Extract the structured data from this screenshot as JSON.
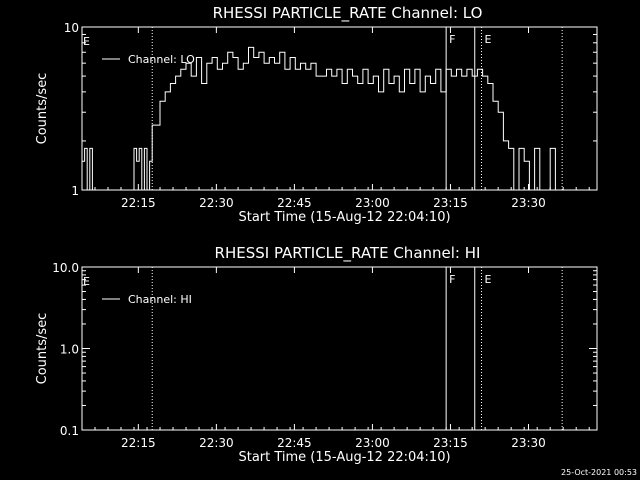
{
  "footer": {
    "timestamp": "25-Oct-2021 00:53"
  },
  "colors": {
    "background": "#000000",
    "foreground": "#ffffff"
  },
  "chart_data": [
    {
      "type": "line",
      "title": "RHESSI PARTICLE_RATE Channel: LO",
      "xlabel": "Start Time (15-Aug-12 22:04:10)",
      "ylabel": "Counts/sec",
      "yscale": "log",
      "ylim": [
        1,
        10
      ],
      "ytick_labels": [
        "1",
        "10"
      ],
      "ytick_values": [
        1,
        10
      ],
      "xlim_minutes": [
        0,
        99
      ],
      "xtick_labels": [
        "22:15",
        "22:30",
        "22:45",
        "23:00",
        "23:15",
        "23:30"
      ],
      "xtick_values_minutes": [
        10.83,
        25.83,
        40.83,
        55.83,
        70.83,
        85.83
      ],
      "legend": "top-left",
      "series": [
        {
          "name": "Channel: LO",
          "x": [
            0,
            0.5,
            1,
            1.5,
            2,
            3,
            4,
            5,
            6,
            7,
            8,
            9,
            10,
            10.5,
            11,
            11.5,
            12,
            12.5,
            13,
            13.5,
            14,
            15,
            16,
            17,
            18,
            19,
            20,
            21,
            22,
            23,
            24,
            25,
            26,
            27,
            28,
            29,
            30,
            31,
            32,
            33,
            34,
            35,
            36,
            37,
            38,
            39,
            40,
            41,
            42,
            43,
            44,
            45,
            46,
            47,
            48,
            49,
            50,
            51,
            52,
            53,
            54,
            55,
            56,
            57,
            58,
            59,
            60,
            61,
            62,
            63,
            64,
            65,
            66,
            67,
            68,
            69,
            70,
            71,
            72,
            73,
            74,
            75,
            76,
            77,
            78,
            79,
            80,
            81,
            82,
            83,
            84,
            85,
            86,
            87,
            88,
            89,
            90,
            91,
            92,
            93,
            94,
            95
          ],
          "values": [
            1.5,
            1.8,
            1.0,
            1.8,
            1.0,
            1.0,
            1.0,
            1.0,
            1.0,
            1.0,
            1.0,
            1.0,
            1.8,
            1.5,
            1.8,
            1.0,
            1.8,
            1.0,
            1.5,
            2.5,
            2.5,
            3.5,
            4.0,
            4.5,
            5.0,
            5.5,
            6.0,
            5.0,
            6.5,
            4.5,
            6.0,
            6.5,
            5.5,
            6.0,
            7.0,
            6.5,
            5.5,
            6.0,
            7.5,
            6.5,
            7.0,
            6.0,
            6.5,
            6.0,
            7.0,
            5.5,
            6.5,
            5.5,
            6.0,
            5.5,
            6.0,
            5.0,
            5.0,
            5.5,
            5.0,
            5.5,
            4.5,
            5.5,
            5.0,
            4.5,
            5.5,
            4.5,
            5.0,
            4.0,
            5.5,
            4.5,
            5.0,
            4.0,
            5.5,
            4.5,
            5.5,
            4.0,
            5.0,
            4.5,
            5.5,
            4.0,
            5.5,
            5.0,
            5.5,
            5.0,
            5.5,
            5.0,
            5.5,
            5.0,
            4.5,
            3.5,
            3.0,
            2.0,
            1.8,
            1.0,
            1.8,
            1.5,
            1.0,
            1.8,
            1.0,
            1.0,
            1.8,
            1.0,
            1.0,
            1.0,
            1.0,
            1.0
          ]
        }
      ],
      "vlines": [
        {
          "label": "",
          "x_minutes": 13.5,
          "style": "dotted"
        },
        {
          "label": "F",
          "x_minutes": 70.0,
          "style": "solid"
        },
        {
          "label": "",
          "x_minutes": 75.5,
          "style": "solid"
        },
        {
          "label": "E",
          "x_minutes": 76.8,
          "style": "dotted"
        },
        {
          "label": "",
          "x_minutes": 92.3,
          "style": "dotted"
        }
      ],
      "corner_marker": "E"
    },
    {
      "type": "line",
      "title": "RHESSI PARTICLE_RATE Channel: HI",
      "xlabel": "Start Time (15-Aug-12 22:04:10)",
      "ylabel": "Counts/sec",
      "yscale": "log",
      "ylim": [
        0.1,
        10.0
      ],
      "ytick_labels": [
        "0.1",
        "1.0",
        "10.0"
      ],
      "ytick_values": [
        0.1,
        1.0,
        10.0
      ],
      "xlim_minutes": [
        0,
        99
      ],
      "xtick_labels": [
        "22:15",
        "22:30",
        "22:45",
        "23:00",
        "23:15",
        "23:30"
      ],
      "xtick_values_minutes": [
        10.83,
        25.83,
        40.83,
        55.83,
        70.83,
        85.83
      ],
      "legend": "top-left",
      "series": [
        {
          "name": "Channel: HI",
          "x": [],
          "values": []
        }
      ],
      "vlines": [
        {
          "label": "",
          "x_minutes": 13.5,
          "style": "dotted"
        },
        {
          "label": "F",
          "x_minutes": 70.0,
          "style": "solid"
        },
        {
          "label": "",
          "x_minutes": 75.5,
          "style": "solid"
        },
        {
          "label": "E",
          "x_minutes": 76.8,
          "style": "dotted"
        },
        {
          "label": "",
          "x_minutes": 92.3,
          "style": "dotted"
        }
      ],
      "corner_marker": "E"
    }
  ]
}
